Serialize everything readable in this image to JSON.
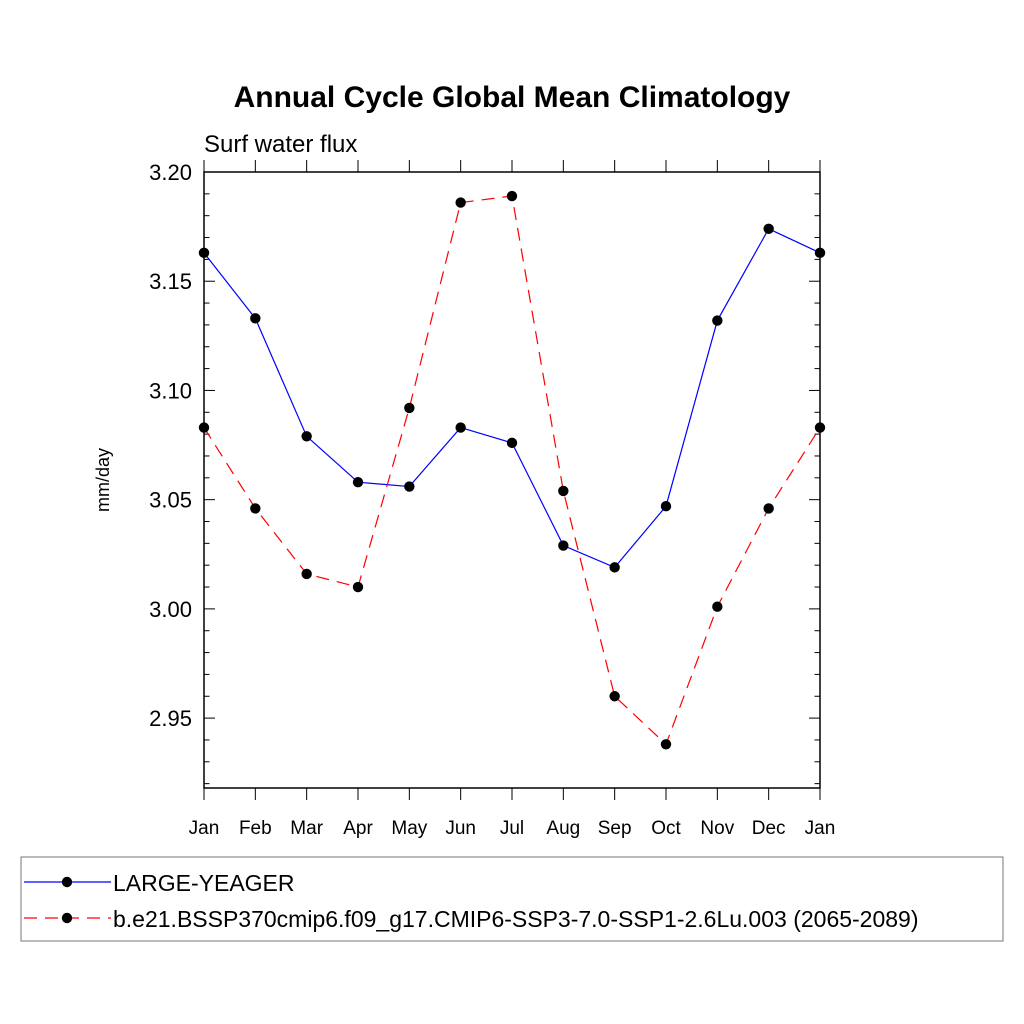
{
  "chart_data": {
    "type": "line",
    "title": "Annual Cycle Global Mean Climatology",
    "subtitle": "Surf water flux",
    "ylabel": "mm/day",
    "xlabel": "",
    "categories": [
      "Jan",
      "Feb",
      "Mar",
      "Apr",
      "May",
      "Jun",
      "Jul",
      "Aug",
      "Sep",
      "Oct",
      "Nov",
      "Dec",
      "Jan"
    ],
    "ylim": [
      2.918,
      3.2
    ],
    "yticks": [
      "3.20",
      "3.15",
      "3.10",
      "3.05",
      "3.00",
      "2.95"
    ],
    "ytick_values": [
      3.2,
      3.15,
      3.1,
      3.05,
      3.0,
      2.95
    ],
    "grid": false,
    "legend_position": "bottom",
    "series": [
      {
        "name": "LARGE-YEAGER",
        "color": "#0000ff",
        "dashed": false,
        "marker": "filled-circle",
        "values": [
          3.163,
          3.133,
          3.079,
          3.058,
          3.056,
          3.083,
          3.076,
          3.029,
          3.019,
          3.047,
          3.132,
          3.174,
          3.163
        ]
      },
      {
        "name": "b.e21.BSSP370cmip6.f09_g17.CMIP6-SSP3-7.0-SSP1-2.6Lu.003 (2065-2089)",
        "color": "#ff0000",
        "dashed": true,
        "marker": "filled-circle",
        "values": [
          3.083,
          3.046,
          3.016,
          3.01,
          3.092,
          3.186,
          3.189,
          3.054,
          2.96,
          2.938,
          3.001,
          3.046,
          3.083
        ]
      }
    ]
  }
}
